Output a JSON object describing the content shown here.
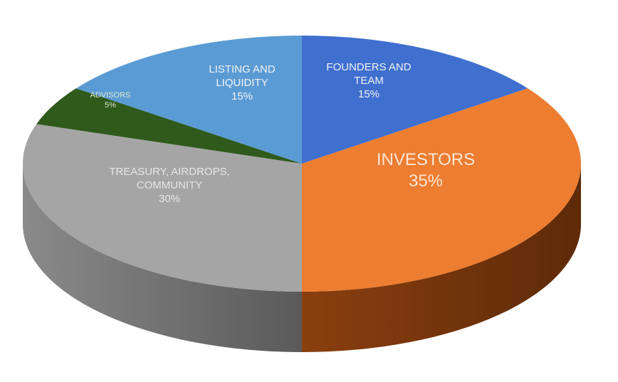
{
  "chart_data": {
    "type": "pie",
    "style": "3d",
    "start_angle": "12 o'clock, clockwise",
    "slices": [
      {
        "label": "FOUNDERS AND TEAM",
        "value": 15,
        "value_label": "15%",
        "color": "#3f6fcf"
      },
      {
        "label": "INVESTORS",
        "value": 35,
        "value_label": "35%",
        "color": "#ed7d31"
      },
      {
        "label": "TREASURY, AIRDROPS, COMMUNITY",
        "value": 30,
        "value_label": "30%",
        "color": "#a5a5a5"
      },
      {
        "label": "ADVISORS",
        "value": 5,
        "value_label": "5%",
        "color": "#2f5a1c"
      },
      {
        "label": "LISTING AND LIQUIDITY",
        "value": 15,
        "value_label": "15%",
        "color": "#5b9bd5"
      }
    ],
    "label_lines": {
      "founders": [
        "FOUNDERS AND",
        "TEAM",
        "15%"
      ],
      "investors": [
        "INVESTORS",
        "35%"
      ],
      "treasury": [
        "TREASURY, AIRDROPS,",
        "COMMUNITY",
        "30%"
      ],
      "advisors": [
        "ADVISORS",
        "5%"
      ],
      "listing": [
        "LISTING AND",
        "LIQUIDITY",
        "15%"
      ]
    },
    "legend": "none"
  }
}
